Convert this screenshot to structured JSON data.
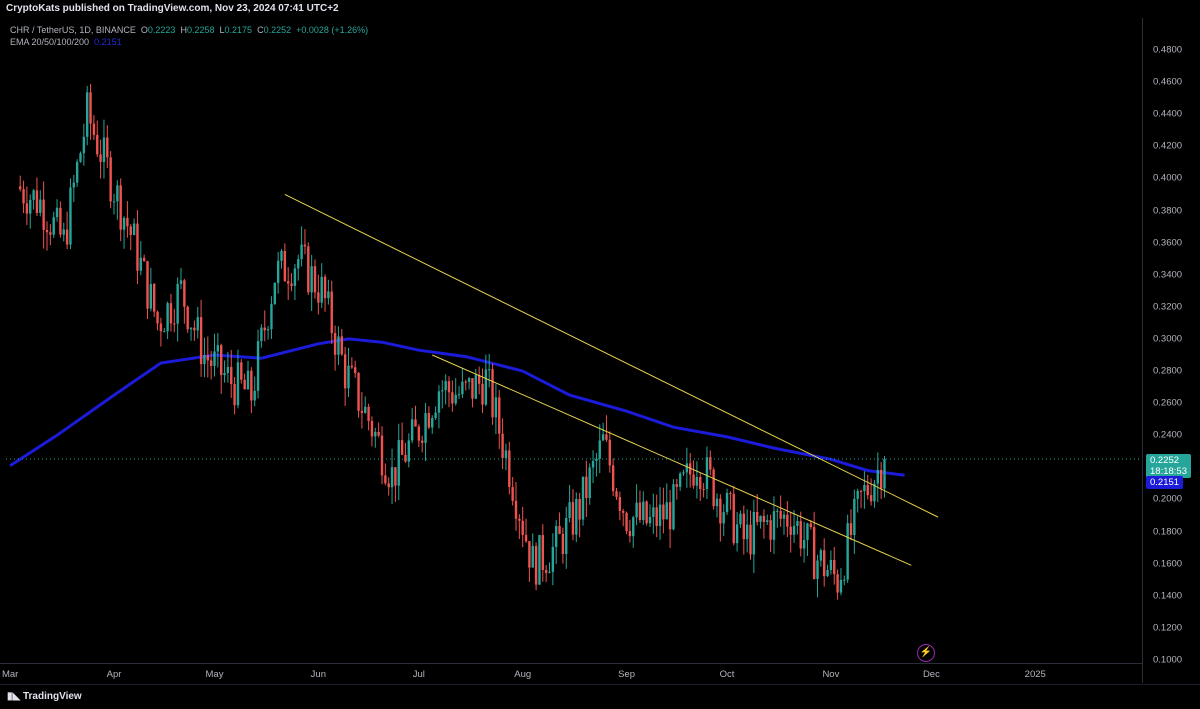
{
  "header": {
    "published": "CryptoKats published on TradingView.com, Nov 23, 2024 07:41 UTC+2"
  },
  "legend": {
    "symbol": "CHR / TetherUS, 1D, BINANCE",
    "o_label": "O",
    "o": "0.2223",
    "h_label": "H",
    "h": "0.2258",
    "l_label": "L",
    "l": "0.2175",
    "c_label": "C",
    "c": "0.2252",
    "change": "+0.0028 (+1.26%)",
    "ema_label": "EMA 20/50/100/200",
    "ema_value": "0.2151"
  },
  "price_axis": {
    "ticks": [
      "0.4800",
      "0.4600",
      "0.4400",
      "0.4200",
      "0.4000",
      "0.3800",
      "0.3600",
      "0.3400",
      "0.3200",
      "0.3000",
      "0.2800",
      "0.2600",
      "0.2400",
      "0.2200",
      "0.2000",
      "0.1800",
      "0.1600",
      "0.1400",
      "0.1200",
      "0.1000"
    ],
    "last_price": "0.2252",
    "countdown": "18:18:53",
    "ema_price": "0.2151"
  },
  "time_axis": {
    "ticks": [
      "Mar",
      "Apr",
      "May",
      "Jun",
      "Jul",
      "Aug",
      "Sep",
      "Oct",
      "Nov",
      "Dec",
      "2025"
    ]
  },
  "footer": {
    "logo_text": "TradingView"
  },
  "colors": {
    "up": "#26a69a",
    "down": "#ef5350",
    "ema": "#1b1bd9",
    "trendline": "#e8d44d",
    "background": "#000000"
  },
  "chart_data": {
    "type": "candlestick",
    "symbol": "CHR / TetherUS",
    "interval": "1D",
    "ylim": [
      0.1,
      0.49
    ],
    "y_scale": "linear",
    "grid": false,
    "candles_weekly_close_approx": [
      {
        "date": "2024-03-04",
        "close": 0.395
      },
      {
        "date": "2024-03-11",
        "close": 0.385
      },
      {
        "date": "2024-03-18",
        "close": 0.36
      },
      {
        "date": "2024-03-25",
        "close": 0.44
      },
      {
        "date": "2024-04-01",
        "close": 0.4
      },
      {
        "date": "2024-04-08",
        "close": 0.36
      },
      {
        "date": "2024-04-15",
        "close": 0.31
      },
      {
        "date": "2024-04-22",
        "close": 0.33
      },
      {
        "date": "2024-04-29",
        "close": 0.29
      },
      {
        "date": "2024-05-06",
        "close": 0.275
      },
      {
        "date": "2024-05-13",
        "close": 0.265
      },
      {
        "date": "2024-05-20",
        "close": 0.34
      },
      {
        "date": "2024-05-27",
        "close": 0.35
      },
      {
        "date": "2024-06-03",
        "close": 0.33
      },
      {
        "date": "2024-06-10",
        "close": 0.28
      },
      {
        "date": "2024-06-17",
        "close": 0.25
      },
      {
        "date": "2024-06-24",
        "close": 0.215
      },
      {
        "date": "2024-07-01",
        "close": 0.24
      },
      {
        "date": "2024-07-08",
        "close": 0.27
      },
      {
        "date": "2024-07-15",
        "close": 0.265
      },
      {
        "date": "2024-07-22",
        "close": 0.275
      },
      {
        "date": "2024-07-29",
        "close": 0.22
      },
      {
        "date": "2024-08-05",
        "close": 0.16
      },
      {
        "date": "2024-08-12",
        "close": 0.17
      },
      {
        "date": "2024-08-19",
        "close": 0.195
      },
      {
        "date": "2024-08-26",
        "close": 0.235
      },
      {
        "date": "2024-09-02",
        "close": 0.19
      },
      {
        "date": "2024-09-09",
        "close": 0.185
      },
      {
        "date": "2024-09-16",
        "close": 0.195
      },
      {
        "date": "2024-09-23",
        "close": 0.225
      },
      {
        "date": "2024-09-30",
        "close": 0.2
      },
      {
        "date": "2024-10-07",
        "close": 0.175
      },
      {
        "date": "2024-10-14",
        "close": 0.185
      },
      {
        "date": "2024-10-21",
        "close": 0.19
      },
      {
        "date": "2024-10-28",
        "close": 0.165
      },
      {
        "date": "2024-11-04",
        "close": 0.15
      },
      {
        "date": "2024-11-11",
        "close": 0.2
      },
      {
        "date": "2024-11-18",
        "close": 0.2252
      }
    ],
    "ema200": [
      {
        "date": "2024-03-01",
        "value": 0.221
      },
      {
        "date": "2024-03-15",
        "value": 0.24
      },
      {
        "date": "2024-04-01",
        "value": 0.265
      },
      {
        "date": "2024-04-15",
        "value": 0.285
      },
      {
        "date": "2024-05-01",
        "value": 0.29
      },
      {
        "date": "2024-05-15",
        "value": 0.288
      },
      {
        "date": "2024-06-01",
        "value": 0.297
      },
      {
        "date": "2024-06-10",
        "value": 0.3
      },
      {
        "date": "2024-06-20",
        "value": 0.298
      },
      {
        "date": "2024-07-01",
        "value": 0.293
      },
      {
        "date": "2024-07-15",
        "value": 0.289
      },
      {
        "date": "2024-08-01",
        "value": 0.28
      },
      {
        "date": "2024-08-15",
        "value": 0.265
      },
      {
        "date": "2024-09-01",
        "value": 0.255
      },
      {
        "date": "2024-09-15",
        "value": 0.245
      },
      {
        "date": "2024-10-01",
        "value": 0.239
      },
      {
        "date": "2024-10-15",
        "value": 0.232
      },
      {
        "date": "2024-11-01",
        "value": 0.225
      },
      {
        "date": "2024-11-12",
        "value": 0.218
      },
      {
        "date": "2024-11-23",
        "value": 0.2151
      }
    ],
    "trendlines": [
      {
        "from": {
          "date": "2024-05-22",
          "price": 0.39
        },
        "to": {
          "date": "2024-12-03",
          "price": 0.189
        }
      },
      {
        "from": {
          "date": "2024-07-05",
          "price": 0.29
        },
        "to": {
          "date": "2024-11-25",
          "price": 0.159
        }
      }
    ],
    "last_close": 0.2252
  }
}
